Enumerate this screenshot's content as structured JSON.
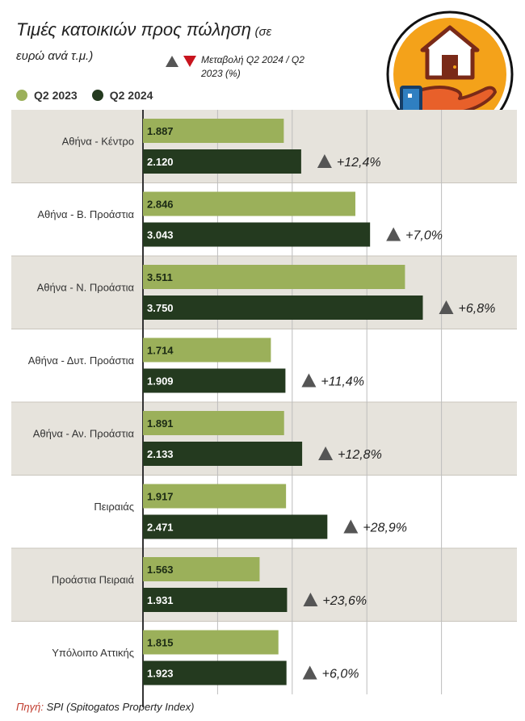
{
  "title": {
    "main": "Τιμές κατοικιών προς πώληση",
    "unit_open": "(σε",
    "unit_rest": "ευρώ ανά τ.μ.)"
  },
  "change_legend": {
    "label": "Μεταβολή Q2 2024 / Q2 2023 (%)"
  },
  "colors": {
    "q2_2023": "#9bb05a",
    "q2_2024": "#243a1f",
    "band": "#e6e3dc",
    "arrow_up": "#555555",
    "arrow_down": "#c8141e",
    "logo_bg": "#f4a21a"
  },
  "source": {
    "label": "Πηγή:",
    "text": "SPI (Spitogatos Property Index)"
  },
  "chart_data": {
    "type": "bar",
    "orientation": "horizontal",
    "series": [
      {
        "name": "Q2 2023",
        "values": [
          1887,
          2846,
          3511,
          1714,
          1891,
          1917,
          1563,
          1815
        ],
        "labels": [
          "1.887",
          "2.846",
          "3.511",
          "1.714",
          "1.891",
          "1.917",
          "1.563",
          "1.815"
        ]
      },
      {
        "name": "Q2 2024",
        "values": [
          2120,
          3043,
          3750,
          1909,
          2133,
          2471,
          1931,
          1923
        ],
        "labels": [
          "2.120",
          "3.043",
          "3.750",
          "1.909",
          "2.133",
          "2.471",
          "1.931",
          "1.923"
        ]
      }
    ],
    "categories": [
      "Αθήνα - Κέντρο",
      "Αθήνα - Β. Προάστια",
      "Αθήνα - Ν. Προάστια",
      "Αθήνα - Δυτ. Προάστια",
      "Αθήνα - Αν. Προάστια",
      "Πειραιάς",
      "Προάστια Πειραιά",
      "Υπόλοιπο Αττικής"
    ],
    "changes": [
      "+12,4%",
      "+7,0%",
      "+6,8%",
      "+11,4%",
      "+12,8%",
      "+28,9%",
      "+23,6%",
      "+6,0%"
    ],
    "change_direction": [
      "up",
      "up",
      "up",
      "up",
      "up",
      "up",
      "up",
      "up"
    ],
    "xlim": [
      0,
      4000
    ],
    "grid": true,
    "legend_position": "top-left"
  }
}
